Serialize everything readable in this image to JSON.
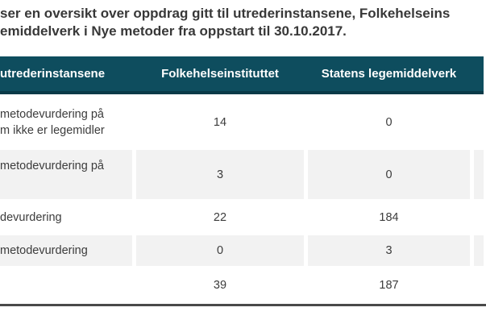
{
  "caption": {
    "line1": "ser en oversikt over oppdrag gitt til utrederinstansene, Folkehelseins",
    "line2": "emiddelverk i Nye metoder fra oppstart til 30.10.2017."
  },
  "table": {
    "header": {
      "col1": "utrederinstansene",
      "col2": "Folkehelseinstituttet",
      "col3": "Statens legemiddelverk"
    },
    "rows": [
      {
        "label_line1": "metodevurdering på",
        "label_line2": "m ikke er legemidler",
        "col2": "14",
        "col3": "0"
      },
      {
        "label_line1": "metodevurdering på",
        "label_line2": "",
        "col2": "3",
        "col3": "0"
      },
      {
        "label_line1": "devurdering",
        "label_line2": "",
        "col2": "22",
        "col3": "184"
      },
      {
        "label_line1": "metodevurdering",
        "label_line2": "",
        "col2": "0",
        "col3": "3"
      },
      {
        "label_line1": "",
        "label_line2": "",
        "col2": "39",
        "col3": "187"
      }
    ],
    "colors": {
      "header_bg": "#0e4d5e",
      "header_border": "#0a3a47",
      "header_text": "#ffffff",
      "alt_row_bg": "#f2f2f2",
      "body_text": "#3c3c3c",
      "bottom_rule": "#4a4a4a"
    }
  }
}
